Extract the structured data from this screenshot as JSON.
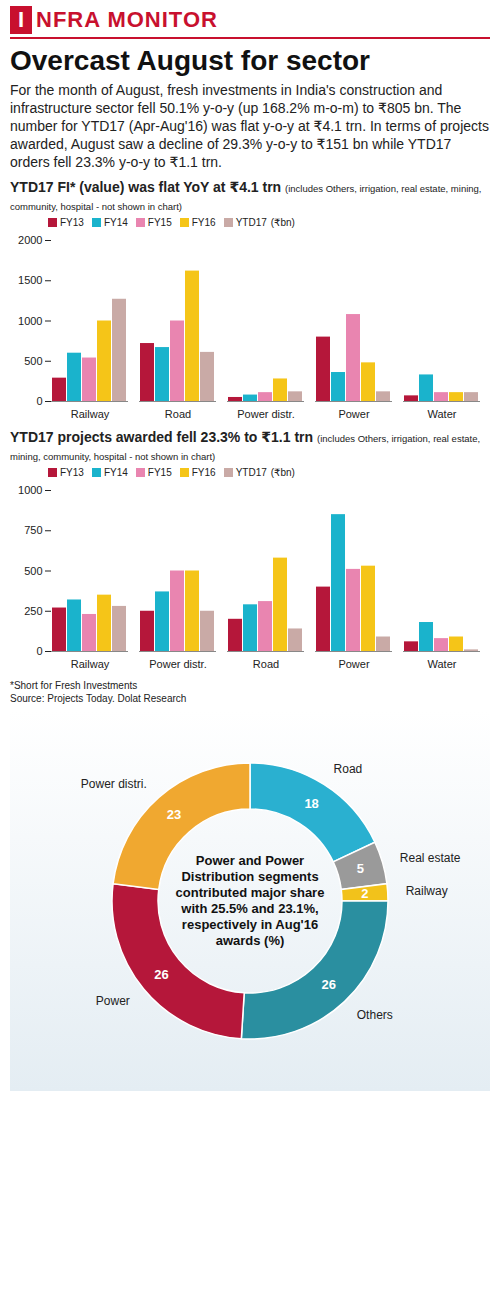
{
  "header": {
    "badge": "I",
    "text": "NFRA MONITOR"
  },
  "title": "Overcast August for sector",
  "intro": "For the month of August, fresh investments in India's construction and infrastructure sector fell 50.1% y-o-y (up 168.2% m-o-m) to ₹805 bn. The number for YTD17 (Apr-Aug'16) was flat y-o-y at ₹4.1 trn. In terms of projects awarded, August saw a decline of 29.3% y-o-y to ₹151 bn while YTD17 orders fell 23.3% y-o-y to ₹1.1 trn.",
  "chart_data": [
    {
      "type": "bar",
      "title": "YTD17 FI* (value) was flat YoY at ₹4.1 trn",
      "subtitle": "(includes Others, irrigation, real estate, mining, community, hospital - not shown in chart)",
      "ylabel": "(₹bn)",
      "categories": [
        "Railway",
        "Road",
        "Power distr.",
        "Power",
        "Water"
      ],
      "series": [
        {
          "name": "FY13",
          "color": "#b5173a",
          "values": [
            290,
            720,
            50,
            800,
            70
          ]
        },
        {
          "name": "FY14",
          "color": "#1ab3cc",
          "values": [
            600,
            670,
            80,
            360,
            330
          ]
        },
        {
          "name": "FY15",
          "color": "#e985b0",
          "values": [
            540,
            1000,
            110,
            1080,
            110
          ]
        },
        {
          "name": "FY16",
          "color": "#f5c518",
          "values": [
            1000,
            1620,
            280,
            480,
            110
          ]
        },
        {
          "name": "YTD17",
          "color": "#c9aaa6",
          "values": [
            1270,
            610,
            120,
            120,
            110
          ]
        }
      ],
      "ylim": [
        0,
        2000
      ],
      "yticks": [
        0,
        500,
        1000,
        1500,
        2000
      ],
      "grid": false,
      "legend": "top"
    },
    {
      "type": "bar",
      "title": "YTD17 projects awarded fell 23.3% to ₹1.1 trn",
      "subtitle": "(includes Others, irrigation, real estate, mining, community, hospital - not shown in chart)",
      "ylabel": "(₹bn)",
      "categories": [
        "Railway",
        "Power distr.",
        "Road",
        "Power",
        "Water"
      ],
      "series": [
        {
          "name": "FY13",
          "color": "#b5173a",
          "values": [
            270,
            250,
            200,
            400,
            60
          ]
        },
        {
          "name": "FY14",
          "color": "#1ab3cc",
          "values": [
            320,
            370,
            290,
            850,
            180
          ]
        },
        {
          "name": "FY15",
          "color": "#e985b0",
          "values": [
            230,
            500,
            310,
            510,
            80
          ]
        },
        {
          "name": "FY16",
          "color": "#f5c518",
          "values": [
            350,
            500,
            580,
            530,
            90
          ]
        },
        {
          "name": "YTD17",
          "color": "#c9aaa6",
          "values": [
            280,
            250,
            140,
            90,
            10
          ]
        }
      ],
      "ylim": [
        0,
        1000
      ],
      "yticks": [
        0,
        250,
        500,
        750,
        1000
      ],
      "grid": false,
      "legend": "top"
    },
    {
      "type": "pie",
      "categories": [
        "Road",
        "Real estate",
        "Railway",
        "Others",
        "Power",
        "Power distri."
      ],
      "values": [
        18,
        5,
        2,
        26,
        26,
        23
      ],
      "colors": [
        "#2ab0d0",
        "#9a9a9a",
        "#f2c21b",
        "#2a8fa0",
        "#b5173a",
        "#f0a830"
      ],
      "data_labels": true,
      "annotation": "Power and Power Distribution segments contributed major share with 25.5% and 23.1%, respectively in Aug'16 awards (%)"
    }
  ],
  "footnotes": [
    "*Short for Fresh Investments",
    "Source: Projects Today. Dolat Research"
  ]
}
